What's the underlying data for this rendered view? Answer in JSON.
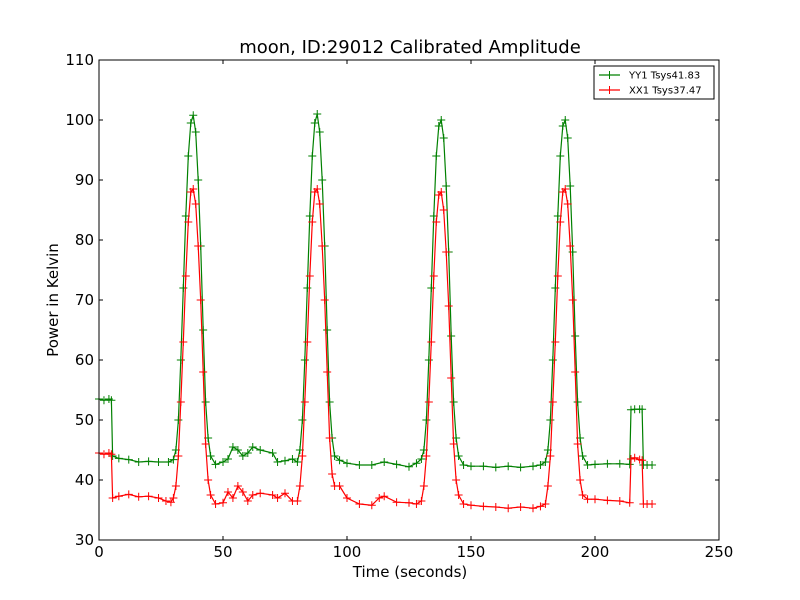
{
  "chart_data": {
    "type": "line",
    "title": "moon, ID:29012 Calibrated Amplitude",
    "xlabel": "Time (seconds)",
    "ylabel": "Power in Kelvin",
    "xlim": [
      0,
      250
    ],
    "ylim": [
      30,
      110
    ],
    "xticks": [
      "0",
      "50",
      "100",
      "150",
      "200",
      "250"
    ],
    "yticks": [
      "30",
      "40",
      "50",
      "60",
      "70",
      "80",
      "90",
      "100",
      "110"
    ],
    "grid": false,
    "legend_position": "top-right",
    "marker": "+",
    "series": [
      {
        "name": "YY1 Tsys41.83",
        "color": "#008000",
        "points": [
          [
            0,
            53.5
          ],
          [
            2,
            53.3
          ],
          [
            4,
            53.5
          ],
          [
            5,
            53.3
          ],
          [
            5.5,
            44
          ],
          [
            8,
            43.6
          ],
          [
            12,
            43.4
          ],
          [
            16,
            43.0
          ],
          [
            20,
            43.1
          ],
          [
            24,
            43.0
          ],
          [
            28,
            43.0
          ],
          [
            30,
            43.4
          ],
          [
            31,
            45
          ],
          [
            32,
            50
          ],
          [
            33,
            60
          ],
          [
            34,
            72
          ],
          [
            35,
            84
          ],
          [
            36,
            94
          ],
          [
            37,
            99.5
          ],
          [
            38,
            100.8
          ],
          [
            39,
            98
          ],
          [
            40,
            90
          ],
          [
            41,
            79
          ],
          [
            42,
            65
          ],
          [
            43,
            53
          ],
          [
            44,
            47
          ],
          [
            45,
            44
          ],
          [
            47,
            42.6
          ],
          [
            50,
            43.0
          ],
          [
            52,
            43.5
          ],
          [
            54,
            45.5
          ],
          [
            56,
            45
          ],
          [
            58,
            44
          ],
          [
            60,
            44.5
          ],
          [
            62,
            45.5
          ],
          [
            65,
            45
          ],
          [
            70,
            44.5
          ],
          [
            72,
            43
          ],
          [
            75,
            43.2
          ],
          [
            78,
            43.5
          ],
          [
            80,
            43
          ],
          [
            81,
            45
          ],
          [
            82,
            50
          ],
          [
            83,
            60
          ],
          [
            84,
            72
          ],
          [
            85,
            84
          ],
          [
            86,
            94
          ],
          [
            87,
            99.5
          ],
          [
            88,
            101
          ],
          [
            89,
            98
          ],
          [
            90,
            90
          ],
          [
            91,
            79
          ],
          [
            92,
            65
          ],
          [
            93,
            53
          ],
          [
            94,
            47
          ],
          [
            95,
            44
          ],
          [
            97,
            43.3
          ],
          [
            100,
            42.8
          ],
          [
            105,
            42.5
          ],
          [
            110,
            42.5
          ],
          [
            115,
            43
          ],
          [
            120,
            42.6
          ],
          [
            125,
            42.2
          ],
          [
            128,
            42.8
          ],
          [
            130,
            43.5
          ],
          [
            131,
            45
          ],
          [
            132,
            50
          ],
          [
            133,
            60
          ],
          [
            134,
            72
          ],
          [
            135,
            84
          ],
          [
            136,
            94
          ],
          [
            137,
            99
          ],
          [
            138,
            100
          ],
          [
            139,
            97
          ],
          [
            140,
            89
          ],
          [
            141,
            78
          ],
          [
            142,
            64
          ],
          [
            143,
            53
          ],
          [
            144,
            47
          ],
          [
            145,
            44
          ],
          [
            147,
            42.5
          ],
          [
            150,
            42.3
          ],
          [
            155,
            42.3
          ],
          [
            160,
            42.1
          ],
          [
            165,
            42.3
          ],
          [
            170,
            42.1
          ],
          [
            175,
            42.3
          ],
          [
            178,
            42.5
          ],
          [
            180,
            43
          ],
          [
            181,
            45
          ],
          [
            182,
            50
          ],
          [
            183,
            60
          ],
          [
            184,
            72
          ],
          [
            185,
            84
          ],
          [
            186,
            94
          ],
          [
            187,
            99
          ],
          [
            188,
            100
          ],
          [
            189,
            97
          ],
          [
            190,
            89
          ],
          [
            191,
            78
          ],
          [
            192,
            64
          ],
          [
            193,
            53
          ],
          [
            194,
            47
          ],
          [
            195,
            44
          ],
          [
            197,
            42.5
          ],
          [
            200,
            42.6
          ],
          [
            205,
            42.7
          ],
          [
            210,
            42.7
          ],
          [
            214,
            42.6
          ],
          [
            214.5,
            51.7
          ],
          [
            216,
            51.8
          ],
          [
            218,
            51.8
          ],
          [
            219,
            51.8
          ],
          [
            219.5,
            42.5
          ],
          [
            221,
            42.5
          ],
          [
            223,
            42.5
          ]
        ]
      },
      {
        "name": "XX1 Tsys37.47",
        "color": "#ff0000",
        "points": [
          [
            0,
            44.5
          ],
          [
            2,
            44.3
          ],
          [
            4,
            44.5
          ],
          [
            5,
            44.3
          ],
          [
            5.5,
            37
          ],
          [
            8,
            37.3
          ],
          [
            12,
            37.6
          ],
          [
            16,
            37.2
          ],
          [
            20,
            37.3
          ],
          [
            24,
            37.0
          ],
          [
            27,
            36.5
          ],
          [
            29,
            36.3
          ],
          [
            30,
            37
          ],
          [
            31,
            39
          ],
          [
            32,
            44
          ],
          [
            33,
            53
          ],
          [
            34,
            63
          ],
          [
            35,
            74
          ],
          [
            36,
            83
          ],
          [
            37,
            88
          ],
          [
            38,
            88.5
          ],
          [
            39,
            86
          ],
          [
            40,
            79
          ],
          [
            41,
            70
          ],
          [
            42,
            58
          ],
          [
            43,
            46
          ],
          [
            44,
            40
          ],
          [
            45,
            37.5
          ],
          [
            47,
            36
          ],
          [
            50,
            36.2
          ],
          [
            52,
            38
          ],
          [
            54,
            37
          ],
          [
            56,
            39
          ],
          [
            58,
            38
          ],
          [
            60,
            36.5
          ],
          [
            62,
            37.5
          ],
          [
            65,
            37.8
          ],
          [
            70,
            37.5
          ],
          [
            72,
            37
          ],
          [
            75,
            37.8
          ],
          [
            78,
            36.5
          ],
          [
            80,
            36.5
          ],
          [
            81,
            39
          ],
          [
            82,
            44
          ],
          [
            83,
            53
          ],
          [
            84,
            63
          ],
          [
            85,
            74
          ],
          [
            86,
            83
          ],
          [
            87,
            88
          ],
          [
            88,
            88.5
          ],
          [
            89,
            86
          ],
          [
            90,
            79
          ],
          [
            91,
            70
          ],
          [
            92,
            58
          ],
          [
            93,
            47
          ],
          [
            94,
            41
          ],
          [
            95,
            39
          ],
          [
            97,
            39
          ],
          [
            100,
            37
          ],
          [
            105,
            36
          ],
          [
            110,
            35.8
          ],
          [
            113,
            37
          ],
          [
            115,
            37.3
          ],
          [
            120,
            36.3
          ],
          [
            125,
            36.2
          ],
          [
            128,
            36.0
          ],
          [
            130,
            36.5
          ],
          [
            131,
            39
          ],
          [
            132,
            44
          ],
          [
            133,
            53
          ],
          [
            134,
            63
          ],
          [
            135,
            74
          ],
          [
            136,
            83
          ],
          [
            137,
            87.5
          ],
          [
            138,
            88
          ],
          [
            139,
            85
          ],
          [
            140,
            78
          ],
          [
            141,
            69
          ],
          [
            142,
            57
          ],
          [
            143,
            46
          ],
          [
            144,
            40
          ],
          [
            145,
            37.5
          ],
          [
            147,
            36
          ],
          [
            150,
            35.8
          ],
          [
            155,
            35.6
          ],
          [
            160,
            35.5
          ],
          [
            165,
            35.3
          ],
          [
            170,
            35.5
          ],
          [
            175,
            35.3
          ],
          [
            178,
            35.6
          ],
          [
            180,
            36
          ],
          [
            181,
            39
          ],
          [
            182,
            44
          ],
          [
            183,
            53
          ],
          [
            184,
            63
          ],
          [
            185,
            74
          ],
          [
            186,
            83
          ],
          [
            187,
            88
          ],
          [
            188,
            88.5
          ],
          [
            189,
            86
          ],
          [
            190,
            79
          ],
          [
            191,
            70
          ],
          [
            192,
            58
          ],
          [
            193,
            46
          ],
          [
            194,
            40
          ],
          [
            195,
            37.5
          ],
          [
            197,
            36.8
          ],
          [
            200,
            36.8
          ],
          [
            205,
            36.6
          ],
          [
            210,
            36.5
          ],
          [
            214,
            36.2
          ],
          [
            214.5,
            43.5
          ],
          [
            216,
            43.7
          ],
          [
            218,
            43.4
          ],
          [
            219,
            43.3
          ],
          [
            219.5,
            36
          ],
          [
            221,
            36
          ],
          [
            223,
            36
          ]
        ]
      }
    ]
  }
}
